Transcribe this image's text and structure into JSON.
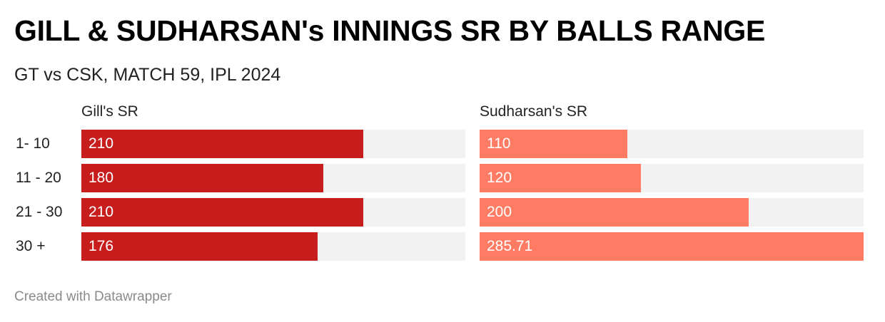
{
  "title": "GILL & SUDHARSAN's INNINGS SR BY BALLS RANGE",
  "subtitle": "GT vs CSK, MATCH 59, IPL 2024",
  "footer": "Created with Datawrapper",
  "colors": {
    "gill": "#c71e1d",
    "sudharsan": "#ff7b63",
    "track": "#f2f2f2"
  },
  "chart_data": {
    "type": "bar",
    "title": "GILL & SUDHARSAN's INNINGS SR BY BALLS RANGE",
    "subtitle": "GT vs CSK, MATCH 59, IPL 2024",
    "categories": [
      "1- 10",
      "11 - 20",
      "21 - 30",
      "30 +"
    ],
    "series": [
      {
        "name": "Gill's SR",
        "values": [
          210,
          180,
          210,
          176
        ],
        "labels": [
          "210",
          "180",
          "210",
          "176"
        ],
        "color": "#c71e1d"
      },
      {
        "name": "Sudharsan's SR",
        "values": [
          110,
          120,
          200,
          285.71
        ],
        "labels": [
          "110",
          "120",
          "200",
          "285.71"
        ],
        "color": "#ff7b63"
      }
    ],
    "xlim": [
      0,
      285.71
    ],
    "grid": false,
    "legend": "none"
  }
}
